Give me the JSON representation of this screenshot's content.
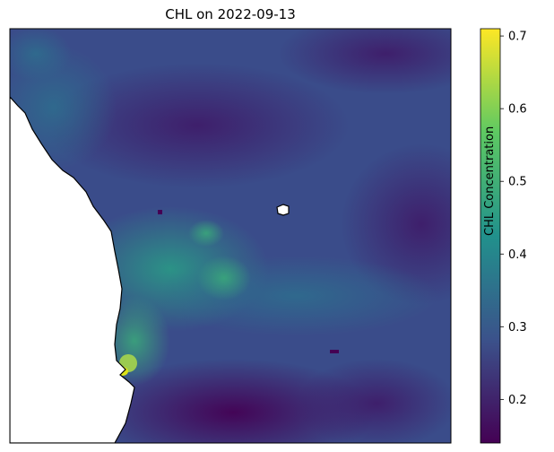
{
  "title": "CHL on 2022-09-13",
  "colorbar": {
    "label": "CHL Concentration",
    "min": 0.14,
    "max": 0.71,
    "ticks": [
      0.2,
      0.3,
      0.4,
      0.5,
      0.6,
      0.7
    ],
    "tick_labels": [
      "0.2",
      "0.3",
      "0.4",
      "0.5",
      "0.6",
      "0.7"
    ],
    "colormap": [
      "#440154",
      "#3b528b",
      "#21918c",
      "#5ec962",
      "#fde725"
    ]
  },
  "map": {
    "variable": "CHL",
    "date": "2022-09-13",
    "land_color": "#ffffff",
    "coastline_color": "#000000"
  }
}
